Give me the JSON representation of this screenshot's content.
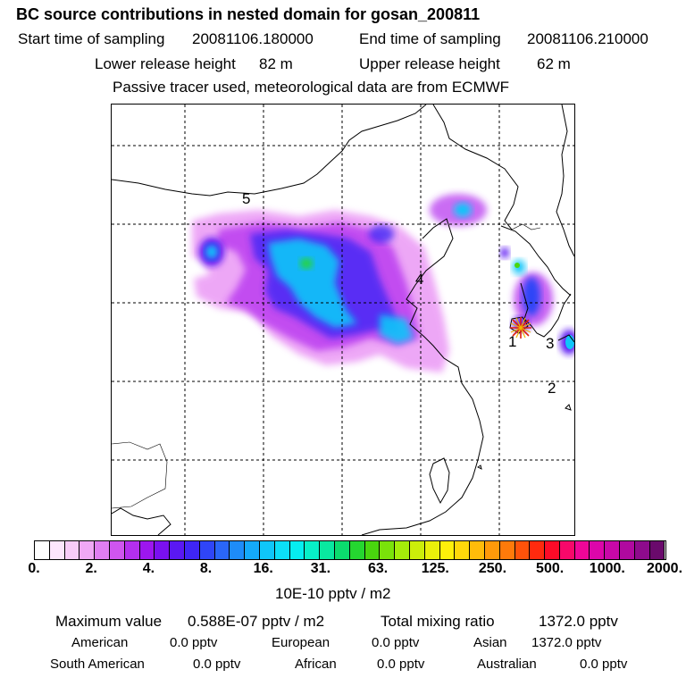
{
  "header": {
    "title": "BC  source contributions in nested domain for gosan_200811",
    "start_label": "Start time of sampling",
    "start_value": "20081106.180000",
    "end_label": "End time of sampling",
    "end_value": "20081106.210000",
    "lower_label": "Lower release height",
    "lower_value": "82 m",
    "upper_label": "Upper release height",
    "upper_value": "62 m",
    "note": "Passive tracer used, meteorological data are from ECMWF"
  },
  "map": {
    "region_labels": [
      "1",
      "2",
      "3",
      "4",
      "5"
    ],
    "release_point_marker": "star-icon"
  },
  "colorbar": {
    "unit": "10E-10 pptv / m2",
    "ticks": [
      "0.",
      "2.",
      "4.",
      "8.",
      "16.",
      "31.",
      "63.",
      "125.",
      "250.",
      "500.",
      "1000.",
      "2000."
    ],
    "colors": [
      "#ffffff",
      "#fde6fd",
      "#f8ccf8",
      "#f0a8f5",
      "#e07ef2",
      "#cf55ef",
      "#b42fef",
      "#9d16ef",
      "#7a10f0",
      "#5a18f3",
      "#3f25f5",
      "#2f45f7",
      "#2a66f8",
      "#1e8cf8",
      "#14aaf9",
      "#0fc6f9",
      "#0cdff7",
      "#06eef0",
      "#07f0c8",
      "#09e8a0",
      "#0bdc6e",
      "#25d630",
      "#49d60e",
      "#7ae20a",
      "#a4ec0a",
      "#ccee0a",
      "#eaf00a",
      "#fff00a",
      "#ffd80a",
      "#ffbc0a",
      "#ff9a0a",
      "#ff7a0a",
      "#ff520a",
      "#ff2a0e",
      "#fe0b28",
      "#f8086a",
      "#ef0698",
      "#dc06aa",
      "#c808a8",
      "#b0099f",
      "#8e0b8c",
      "#6a0a6c"
    ]
  },
  "stats": {
    "max_label": "Maximum value",
    "max_value": "0.588E-07 pptv / m2",
    "total_label": "Total mixing ratio",
    "total_value": "1372.0 pptv",
    "regions": [
      {
        "name": "American",
        "value": "0.0 pptv"
      },
      {
        "name": "European",
        "value": "0.0 pptv"
      },
      {
        "name": "Asian",
        "value": "1372.0 pptv"
      },
      {
        "name": "South American",
        "value": "0.0 pptv"
      },
      {
        "name": "African",
        "value": "0.0 pptv"
      },
      {
        "name": "Australian",
        "value": "0.0 pptv"
      }
    ]
  }
}
